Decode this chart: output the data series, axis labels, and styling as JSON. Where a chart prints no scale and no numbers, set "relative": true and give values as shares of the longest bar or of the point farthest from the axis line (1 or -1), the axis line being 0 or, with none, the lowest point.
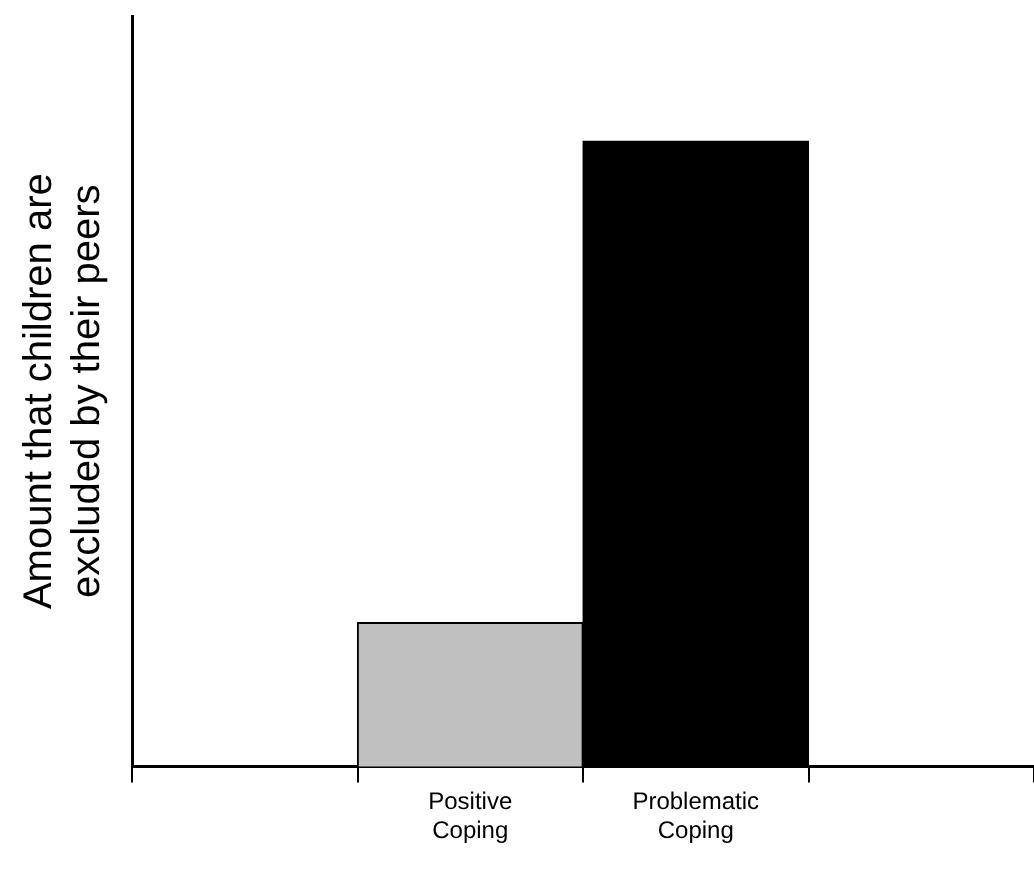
{
  "chart_data": {
    "type": "bar",
    "ylabel": "Amount that children are\nexcluded by their peers",
    "categories": [
      null,
      "Positive Coping",
      "Problematic Coping",
      null
    ],
    "values": [
      null,
      0.23,
      1,
      null
    ],
    "colors": [
      "#c0c0c0",
      "#c0c0c0",
      "#000000",
      "#000000"
    ],
    "relative": true,
    "grid": false,
    "legend": false
  }
}
